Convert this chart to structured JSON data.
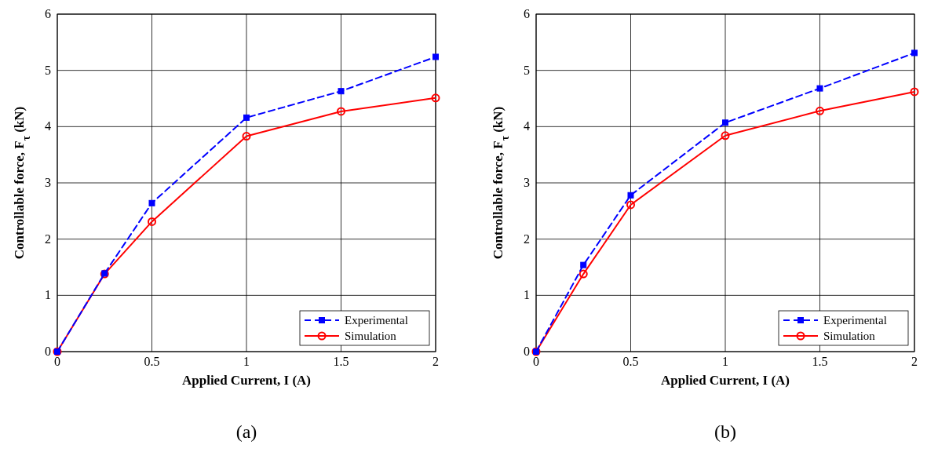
{
  "chart_data": [
    {
      "type": "line",
      "xlabel": "Applied Current, I (A)",
      "ylabel": "Controllable force, F$_{τ}$ (kN)",
      "x": [
        0,
        0.25,
        0.5,
        1,
        1.5,
        2
      ],
      "xlim": [
        0,
        2
      ],
      "xticks": [
        0,
        0.5,
        1,
        1.5,
        2
      ],
      "ylim": [
        0,
        6
      ],
      "yticks": [
        0,
        1,
        2,
        3,
        4,
        5,
        6
      ],
      "grid": true,
      "legend": "bottom right",
      "annotations": [
        "(a)"
      ],
      "series": [
        {
          "name": "Experimental",
          "color": "#0000ff",
          "marker": "square",
          "line_style": "dashed",
          "values": [
            0,
            1.39,
            2.64,
            4.16,
            4.63,
            5.24
          ]
        },
        {
          "name": "Simulation",
          "color": "#ff0000",
          "marker": "circle",
          "line_style": "solid",
          "values": [
            0,
            1.38,
            2.31,
            3.83,
            4.27,
            4.51
          ]
        }
      ]
    },
    {
      "type": "line",
      "xlabel": "Applied Current, I (A)",
      "ylabel": "Controllable force, F$_{τ}$ (kN)",
      "x": [
        0,
        0.25,
        0.5,
        1,
        1.5,
        2
      ],
      "xlim": [
        0,
        2
      ],
      "xticks": [
        0,
        0.5,
        1,
        1.5,
        2
      ],
      "ylim": [
        0,
        6
      ],
      "yticks": [
        0,
        1,
        2,
        3,
        4,
        5,
        6
      ],
      "grid": true,
      "legend": "bottom right",
      "annotations": [
        "(b)"
      ],
      "series": [
        {
          "name": "Experimental",
          "color": "#0000ff",
          "marker": "square",
          "line_style": "dashed",
          "values": [
            0,
            1.54,
            2.78,
            4.07,
            4.68,
            5.31
          ]
        },
        {
          "name": "Simulation",
          "color": "#ff0000",
          "marker": "circle",
          "line_style": "solid",
          "values": [
            0,
            1.38,
            2.61,
            3.84,
            4.28,
            4.62
          ]
        }
      ]
    }
  ]
}
